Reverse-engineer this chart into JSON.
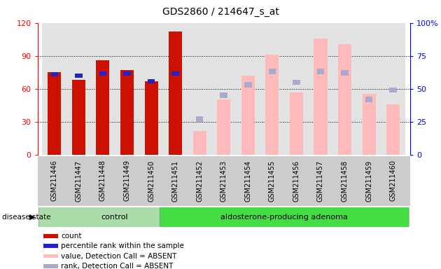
{
  "title": "GDS2860 / 214647_s_at",
  "samples": [
    "GSM211446",
    "GSM211447",
    "GSM211448",
    "GSM211449",
    "GSM211450",
    "GSM211451",
    "GSM211452",
    "GSM211453",
    "GSM211454",
    "GSM211455",
    "GSM211456",
    "GSM211457",
    "GSM211458",
    "GSM211459",
    "GSM211460"
  ],
  "count_values": [
    75,
    68,
    86,
    77,
    67,
    112,
    null,
    null,
    null,
    null,
    null,
    null,
    null,
    null,
    null
  ],
  "percentile_values": [
    73,
    72,
    74,
    74,
    67,
    74,
    null,
    null,
    null,
    null,
    null,
    null,
    null,
    null,
    null
  ],
  "absent_value_values": [
    null,
    null,
    null,
    null,
    null,
    null,
    18,
    42,
    60,
    76,
    47,
    88,
    84,
    46,
    38
  ],
  "absent_rank_values": [
    null,
    null,
    null,
    null,
    null,
    null,
    27,
    45,
    53,
    63,
    55,
    63,
    62,
    42,
    49
  ],
  "ylim_left": [
    0,
    120
  ],
  "ylim_right": [
    0,
    100
  ],
  "yticks_left": [
    0,
    30,
    60,
    90,
    120
  ],
  "yticks_right": [
    0,
    25,
    50,
    75,
    100
  ],
  "groups": [
    {
      "label": "control",
      "start": 0,
      "end": 5
    },
    {
      "label": "aldosterone-producing adenoma",
      "start": 5,
      "end": 14
    }
  ],
  "disease_state_label": "disease state",
  "bar_color_count": "#cc1100",
  "bar_color_percentile": "#2222cc",
  "bar_color_absent_value": "#ffbbbb",
  "bar_color_absent_rank": "#aaaacc",
  "legend_items": [
    {
      "label": "count",
      "color": "#cc1100"
    },
    {
      "label": "percentile rank within the sample",
      "color": "#2222cc"
    },
    {
      "label": "value, Detection Call = ABSENT",
      "color": "#ffbbbb"
    },
    {
      "label": "rank, Detection Call = ABSENT",
      "color": "#aaaacc"
    }
  ],
  "bar_width": 0.55,
  "figsize": [
    6.3,
    3.84
  ],
  "dpi": 100
}
